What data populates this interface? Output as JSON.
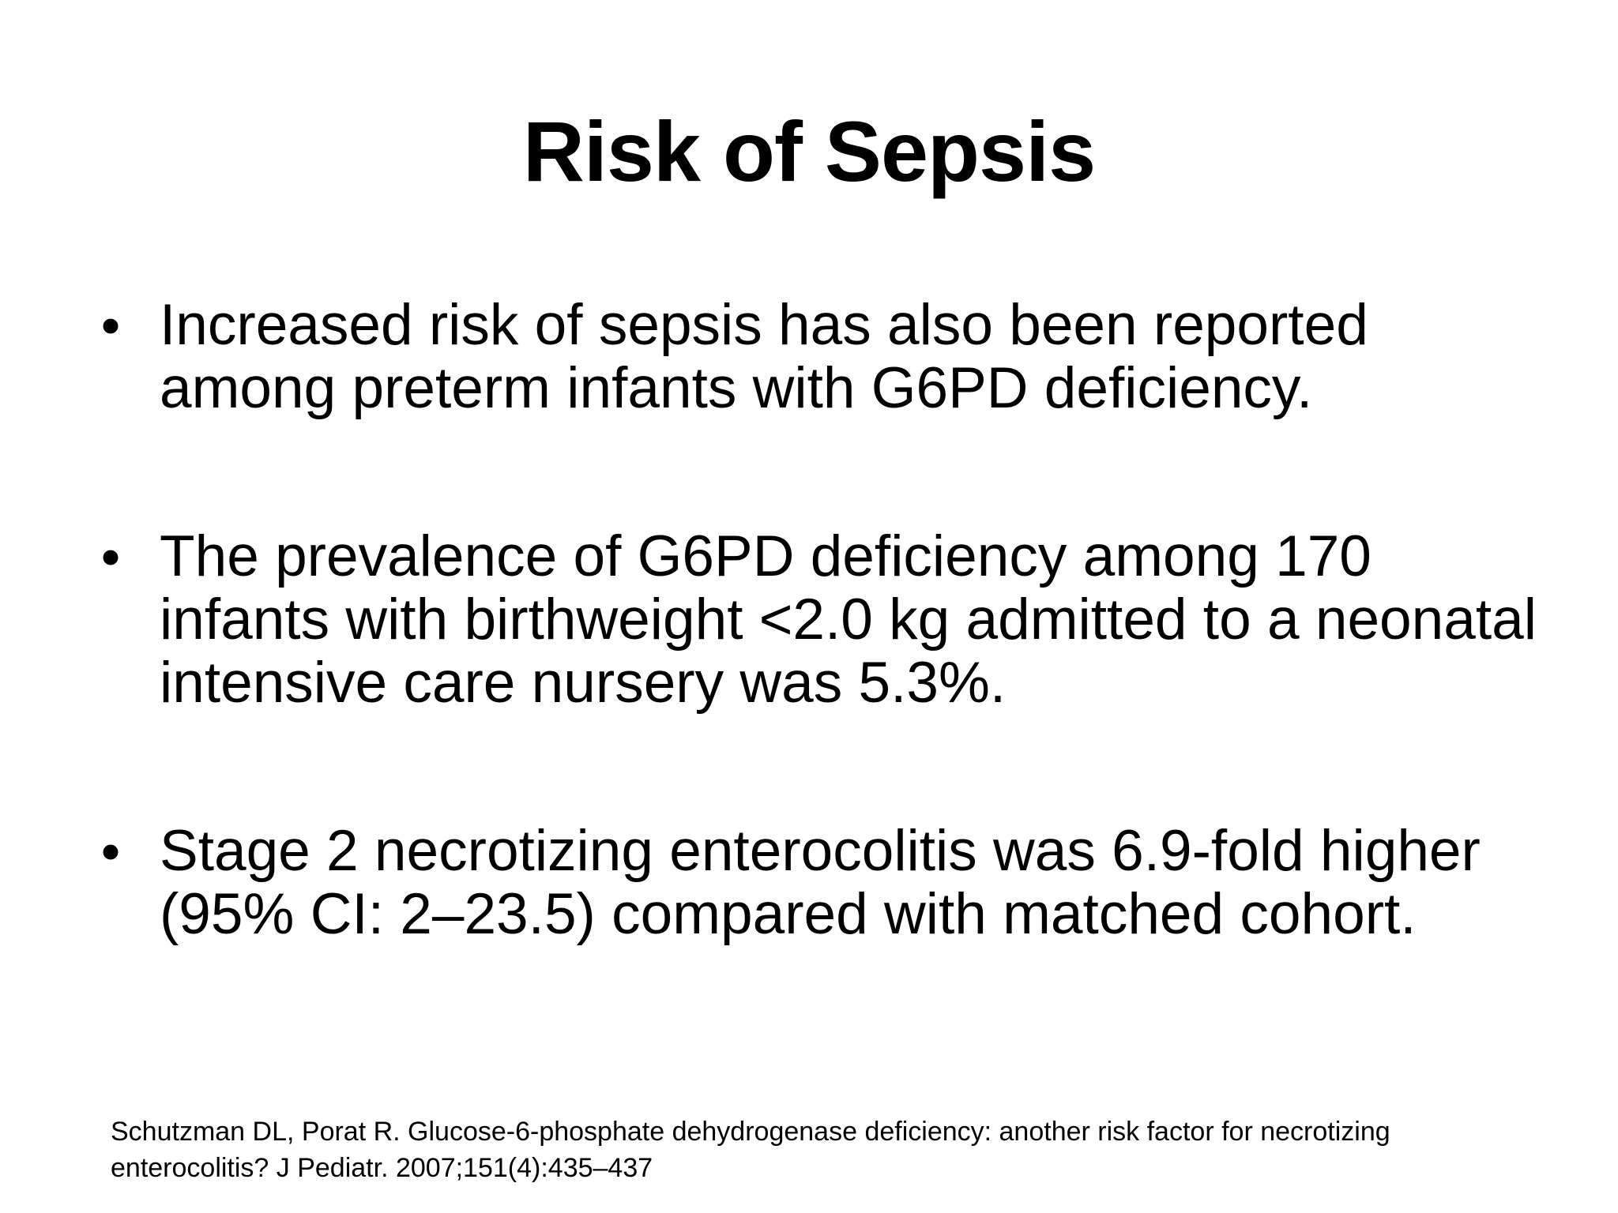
{
  "slide": {
    "title": "Risk of Sepsis",
    "bullet_marker": "•",
    "bullets": [
      {
        "text": "Increased risk of sepsis has also been reported among preterm infants with G6PD deficiency."
      },
      {
        "text": "The prevalence of G6PD deficiency among 170 infants with birthweight <2.0 kg admitted to a neonatal intensive care nursery was 5.3%."
      },
      {
        "text": "Stage 2 necrotizing enterocolitis was 6.9-fold higher (95% CI: 2–23.5) compared with matched cohort."
      }
    ],
    "citation": "Schutzman DL, Porat R. Glucose-6-phosphate dehydrogenase deficiency: another risk factor for necrotizing enterocolitis? J Pediatr. 2007;151(4):435–437"
  }
}
